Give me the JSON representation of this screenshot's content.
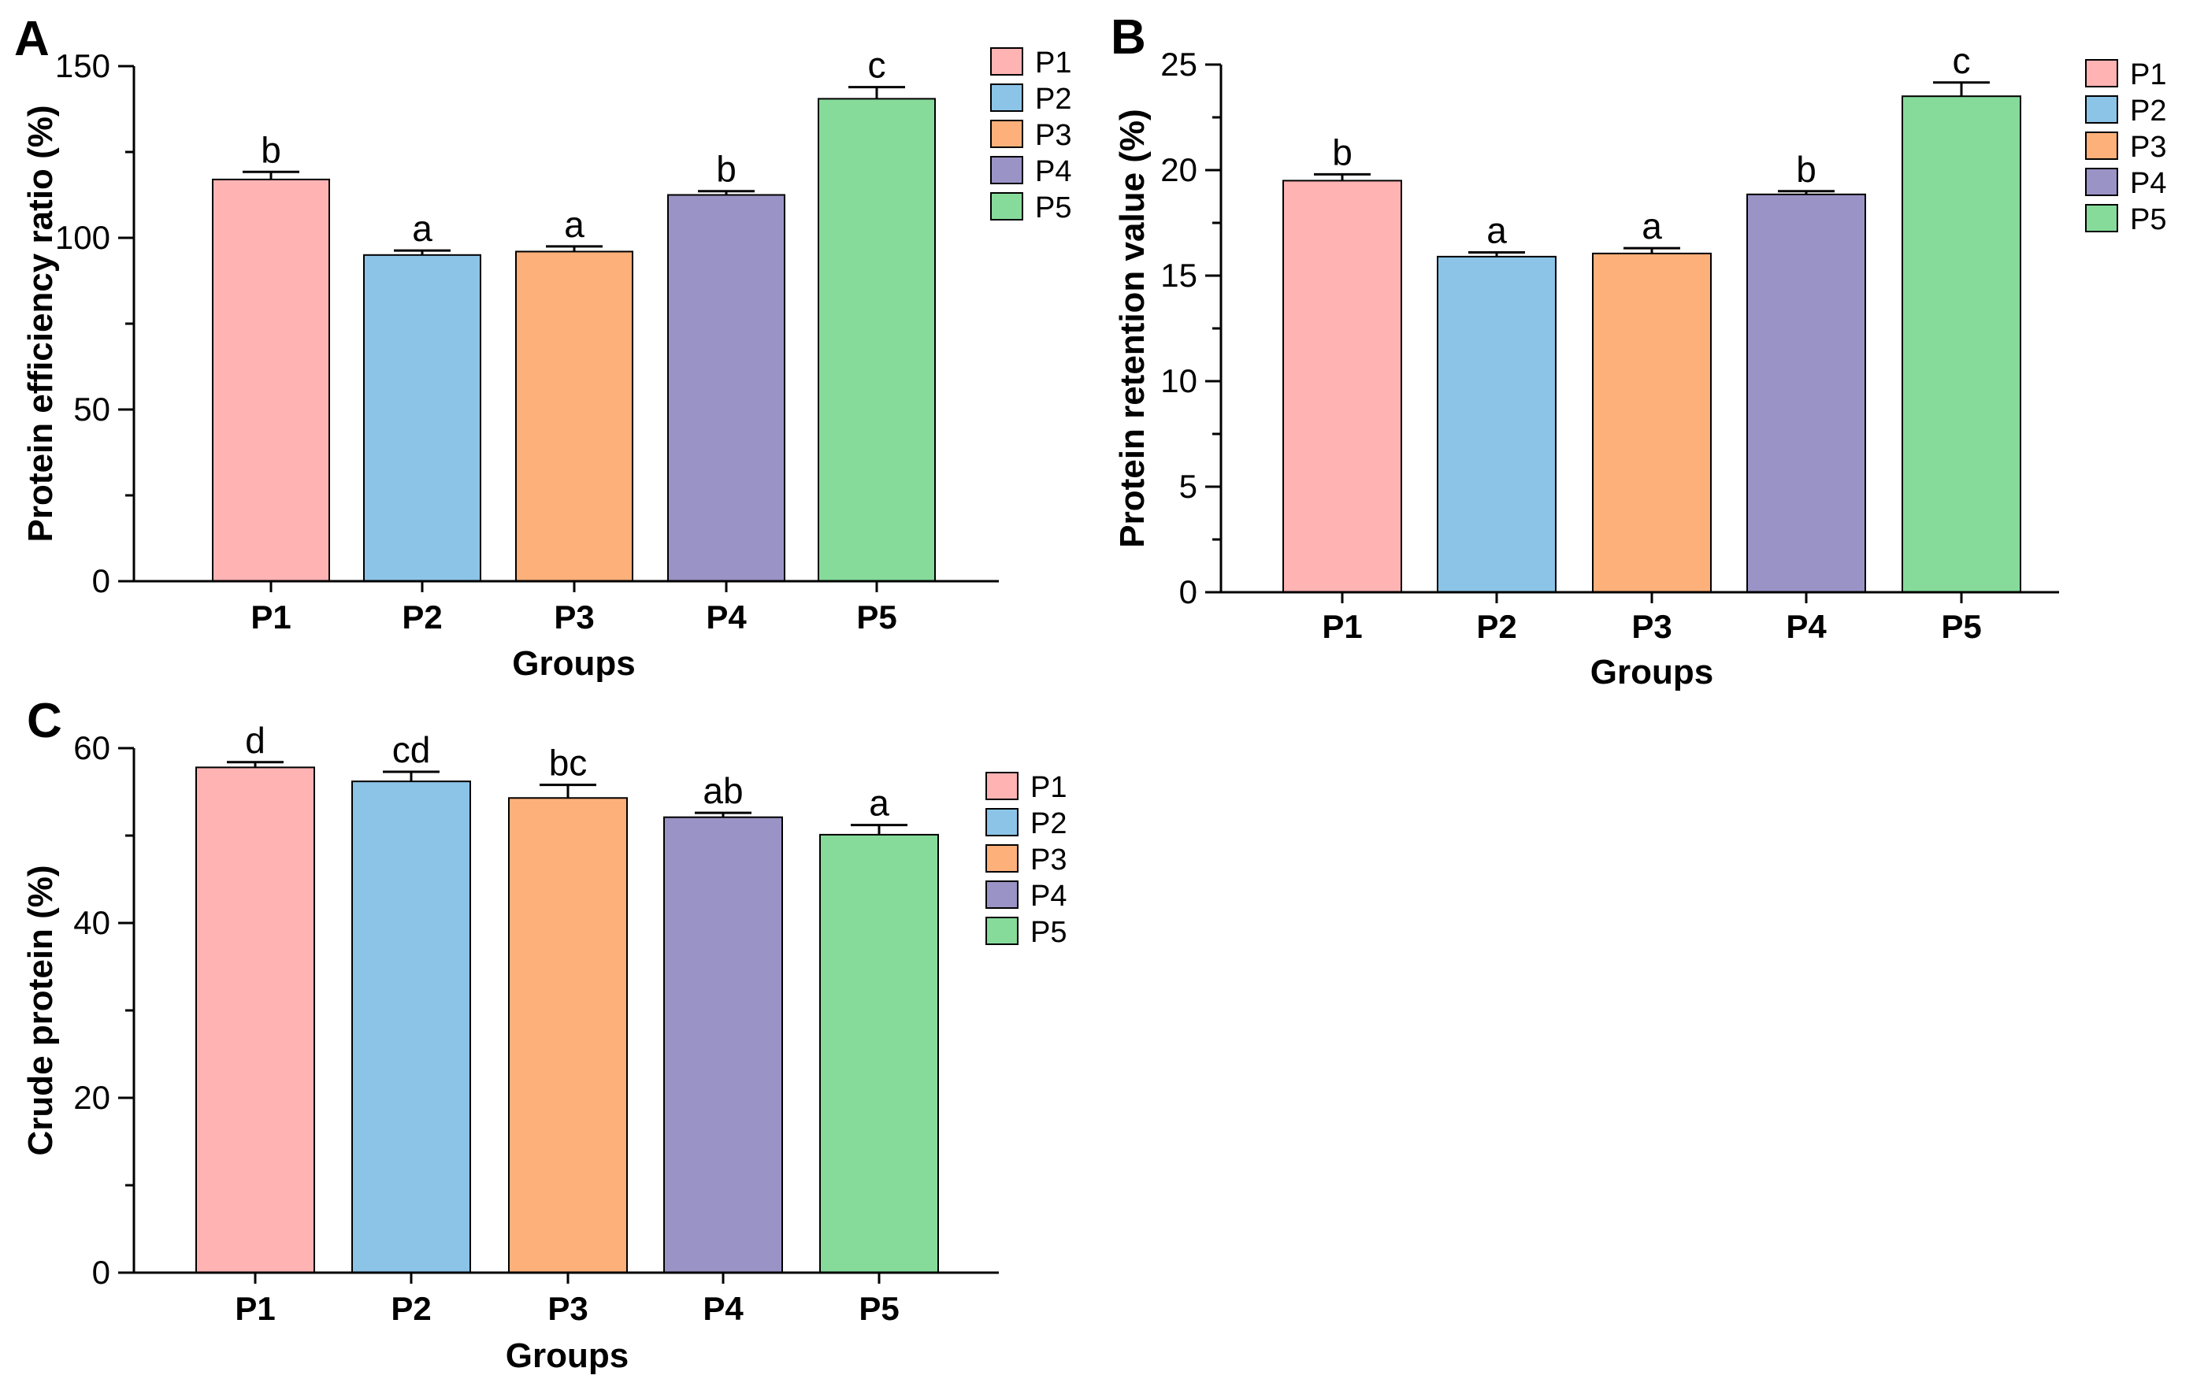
{
  "chart_data": [
    {
      "panel": "A",
      "type": "bar",
      "categories": [
        "P1",
        "P2",
        "P3",
        "P4",
        "P5"
      ],
      "values": [
        117,
        95,
        96,
        112.5,
        140.5
      ],
      "errors": [
        2.2,
        1.3,
        1.5,
        1.1,
        3.4
      ],
      "significance": [
        "b",
        "a",
        "a",
        "b",
        "c"
      ],
      "colors": [
        "#FFB3B3",
        "#8CC4E8",
        "#FDB07A",
        "#9A93C6",
        "#86DB9A"
      ],
      "ylabel": "Protein efficiency ratio (%)",
      "xlabel": "Groups",
      "ylim": [
        0,
        150
      ],
      "yticks": [
        0,
        50,
        100,
        150
      ],
      "legend": [
        "P1",
        "P2",
        "P3",
        "P4",
        "P5"
      ],
      "legend_position": "right",
      "grid": false
    },
    {
      "panel": "B",
      "type": "bar",
      "categories": [
        "P1",
        "P2",
        "P3",
        "P4",
        "P5"
      ],
      "values": [
        19.5,
        15.9,
        16.05,
        18.85,
        23.5
      ],
      "errors": [
        0.3,
        0.2,
        0.25,
        0.15,
        0.65
      ],
      "significance": [
        "b",
        "a",
        "a",
        "b",
        "c"
      ],
      "colors": [
        "#FFB3B3",
        "#8CC4E8",
        "#FDB07A",
        "#9A93C6",
        "#86DB9A"
      ],
      "ylabel": "Protein retention value (%)",
      "xlabel": "Groups",
      "ylim": [
        0,
        25
      ],
      "yticks": [
        0,
        5,
        10,
        15,
        20,
        25
      ],
      "legend": [
        "P1",
        "P2",
        "P3",
        "P4",
        "P5"
      ],
      "legend_position": "right",
      "grid": false
    },
    {
      "panel": "C",
      "type": "bar",
      "categories": [
        "P1",
        "P2",
        "P3",
        "P4",
        "P5"
      ],
      "values": [
        57.8,
        56.2,
        54.3,
        52.1,
        50.1
      ],
      "errors": [
        0.6,
        1.1,
        1.5,
        0.5,
        1.1
      ],
      "significance": [
        "d",
        "cd",
        "bc",
        "ab",
        "a"
      ],
      "colors": [
        "#FFB3B3",
        "#8CC4E8",
        "#FDB07A",
        "#9A93C6",
        "#86DB9A"
      ],
      "ylabel": "Crude protein (%)",
      "xlabel": "Groups",
      "ylim": [
        0,
        60
      ],
      "yticks": [
        0,
        20,
        40,
        60
      ],
      "legend": [
        "P1",
        "P2",
        "P3",
        "P4",
        "P5"
      ],
      "legend_position": "right",
      "grid": false
    }
  ]
}
